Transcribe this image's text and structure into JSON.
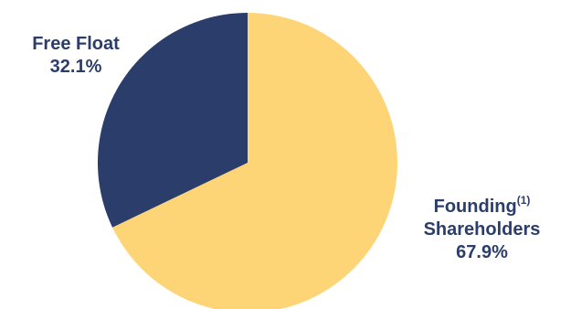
{
  "chart_data": {
    "type": "pie",
    "title": "",
    "slices": [
      {
        "name": "Free Float",
        "name_lines": [
          "Free Float"
        ],
        "footnote": "",
        "value": 32.1,
        "value_label": "32.1%",
        "color": "#2b3e6b"
      },
      {
        "name": "Founding Shareholders",
        "name_lines": [
          "Founding",
          "Shareholders"
        ],
        "footnote": "(1)",
        "value": 67.9,
        "value_label": "67.9%",
        "color": "#fdd576"
      }
    ],
    "start_angle": "12 o'clock",
    "direction": "clockwise, founding shareholders first"
  }
}
